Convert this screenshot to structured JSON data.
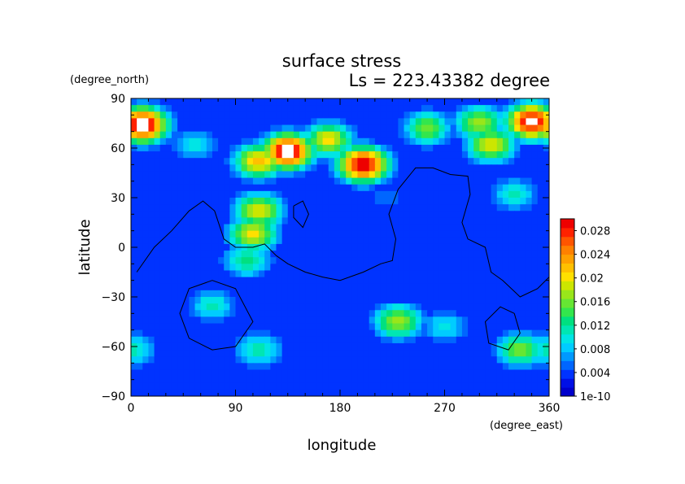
{
  "chart_data": {
    "type": "heatmap",
    "title": "surface stress",
    "subtitle": "Ls = 223.43382 degree",
    "xlabel": "longitude",
    "ylabel": "latitude",
    "x_units": "(degree_east)",
    "y_units": "(degree_north)",
    "xlim": [
      0,
      360
    ],
    "ylim": [
      -90,
      90
    ],
    "xticks": [
      "0",
      "90",
      "180",
      "270",
      "360"
    ],
    "yticks": [
      "90",
      "60",
      "30",
      "0",
      "−30",
      "−60",
      "−90"
    ],
    "colorbar": {
      "labels": [
        "0.028",
        "0.024",
        "0.02",
        "0.016",
        "0.012",
        "0.008",
        "0.004",
        "1e-10"
      ],
      "min": 0,
      "max": 0.03,
      "colors": [
        "#0000cc",
        "#0010e6",
        "#0033ff",
        "#0066ff",
        "#0099ff",
        "#00ccff",
        "#00e5e5",
        "#00e6b3",
        "#00e080",
        "#33e64d",
        "#66e633",
        "#99e61a",
        "#cce600",
        "#ffe000",
        "#ffc000",
        "#ffa000",
        "#ff8000",
        "#ff5500",
        "#ff2200",
        "#ee0000"
      ],
      "above_max_color": "#ffffff",
      "placement": "right"
    },
    "hotspots": [
      {
        "lon": 10,
        "lat": 74,
        "value": 0.032
      },
      {
        "lon": 135,
        "lat": 58,
        "value": 0.032
      },
      {
        "lon": 200,
        "lat": 50,
        "value": 0.031
      },
      {
        "lon": 345,
        "lat": 76,
        "value": 0.031
      },
      {
        "lon": 110,
        "lat": 52,
        "value": 0.022
      },
      {
        "lon": 170,
        "lat": 65,
        "value": 0.02
      },
      {
        "lon": 255,
        "lat": 72,
        "value": 0.016
      },
      {
        "lon": 310,
        "lat": 62,
        "value": 0.02
      },
      {
        "lon": 300,
        "lat": 75,
        "value": 0.018
      },
      {
        "lon": 110,
        "lat": 22,
        "value": 0.02
      },
      {
        "lon": 105,
        "lat": 8,
        "value": 0.02
      },
      {
        "lon": 100,
        "lat": -8,
        "value": 0.013
      },
      {
        "lon": 230,
        "lat": -45,
        "value": 0.018
      },
      {
        "lon": 270,
        "lat": -48,
        "value": 0.01
      },
      {
        "lon": 335,
        "lat": -62,
        "value": 0.016
      },
      {
        "lon": 70,
        "lat": -35,
        "value": 0.011
      },
      {
        "lon": 110,
        "lat": -62,
        "value": 0.012
      },
      {
        "lon": 0,
        "lat": -62,
        "value": 0.012
      },
      {
        "lon": 330,
        "lat": 32,
        "value": 0.011
      },
      {
        "lon": 55,
        "lat": 62,
        "value": 0.01
      },
      {
        "lon": 220,
        "lat": 30,
        "value": 0.006
      }
    ],
    "topography_contours": [
      {
        "points": [
          [
            5,
            -15
          ],
          [
            20,
            0
          ],
          [
            35,
            10
          ],
          [
            50,
            22
          ],
          [
            62,
            28
          ],
          [
            72,
            22
          ],
          [
            80,
            5
          ],
          [
            90,
            0
          ],
          [
            105,
            0
          ],
          [
            115,
            2
          ],
          [
            125,
            -5
          ],
          [
            135,
            -10
          ],
          [
            150,
            -15
          ],
          [
            165,
            -18
          ],
          [
            180,
            -20
          ],
          [
            200,
            -15
          ],
          [
            215,
            -10
          ],
          [
            225,
            -8
          ],
          [
            228,
            5
          ],
          [
            222,
            20
          ],
          [
            230,
            35
          ],
          [
            245,
            48
          ],
          [
            260,
            48
          ],
          [
            275,
            44
          ],
          [
            290,
            43
          ],
          [
            292,
            32
          ],
          [
            285,
            15
          ],
          [
            290,
            5
          ],
          [
            305,
            0
          ],
          [
            310,
            -15
          ],
          [
            320,
            -20
          ],
          [
            335,
            -30
          ],
          [
            350,
            -25
          ],
          [
            360,
            -18
          ]
        ]
      },
      {
        "points": [
          [
            140,
            25
          ],
          [
            148,
            28
          ],
          [
            153,
            20
          ],
          [
            148,
            12
          ],
          [
            140,
            18
          ],
          [
            140,
            25
          ]
        ]
      },
      {
        "points": [
          [
            70,
            -20
          ],
          [
            90,
            -25
          ],
          [
            105,
            -45
          ],
          [
            90,
            -60
          ],
          [
            70,
            -62
          ],
          [
            50,
            -55
          ],
          [
            42,
            -40
          ],
          [
            50,
            -25
          ],
          [
            70,
            -20
          ]
        ]
      },
      {
        "points": [
          [
            330,
            -40
          ],
          [
            335,
            -52
          ],
          [
            325,
            -62
          ],
          [
            308,
            -58
          ],
          [
            305,
            -45
          ],
          [
            318,
            -36
          ],
          [
            330,
            -40
          ]
        ]
      }
    ]
  }
}
